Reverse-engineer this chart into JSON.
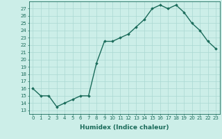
{
  "x": [
    0,
    1,
    2,
    3,
    4,
    5,
    6,
    7,
    8,
    9,
    10,
    11,
    12,
    13,
    14,
    15,
    16,
    17,
    18,
    19,
    20,
    21,
    22,
    23
  ],
  "y": [
    16,
    15,
    15,
    13.5,
    14,
    14.5,
    15,
    15,
    19.5,
    22.5,
    22.5,
    23,
    23.5,
    24.5,
    25.5,
    27,
    27.5,
    27,
    27.5,
    26.5,
    25,
    24,
    22.5,
    21.5
  ],
  "line_color": "#1a6b5a",
  "marker": "D",
  "marker_size": 1.8,
  "bg_color": "#cceee8",
  "grid_major_color": "#aad8d2",
  "grid_minor_color": "#bbded8",
  "xlabel": "Humidex (Indice chaleur)",
  "ylabel_ticks": [
    13,
    14,
    15,
    16,
    17,
    18,
    19,
    20,
    21,
    22,
    23,
    24,
    25,
    26,
    27
  ],
  "ylim": [
    12.5,
    28.0
  ],
  "xlim": [
    -0.5,
    23.5
  ],
  "xticks": [
    0,
    1,
    2,
    3,
    4,
    5,
    6,
    7,
    8,
    9,
    10,
    11,
    12,
    13,
    14,
    15,
    16,
    17,
    18,
    19,
    20,
    21,
    22,
    23
  ],
  "xtick_labels": [
    "0",
    "1",
    "2",
    "3",
    "4",
    "5",
    "6",
    "7",
    "8",
    "9",
    "10",
    "11",
    "12",
    "13",
    "14",
    "15",
    "16",
    "17",
    "18",
    "19",
    "20",
    "21",
    "22",
    "23"
  ],
  "tick_fontsize": 5.0,
  "xlabel_fontsize": 6.5,
  "line_width": 1.0
}
